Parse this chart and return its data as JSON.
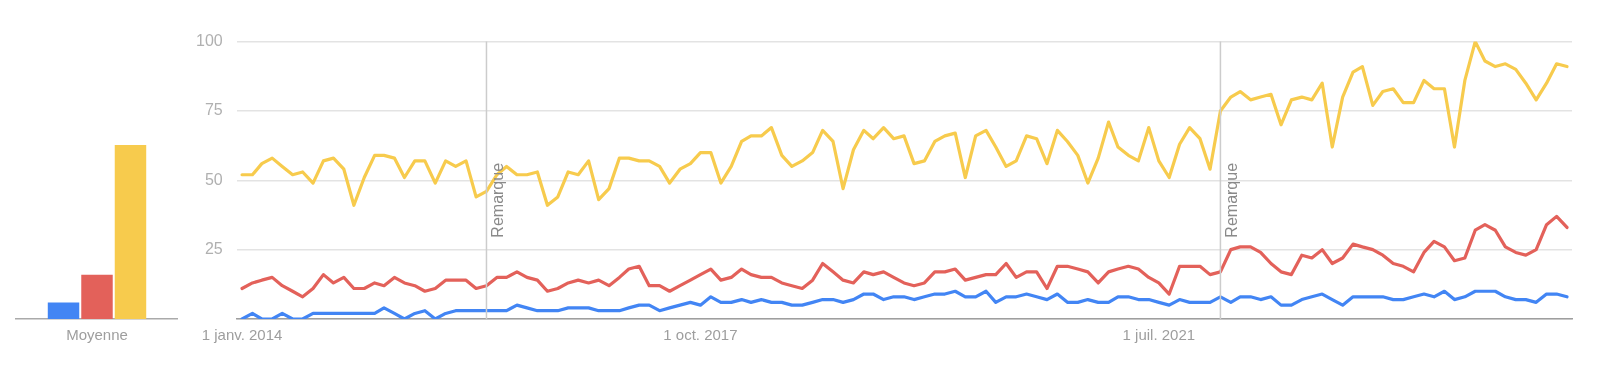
{
  "chart_data": [
    {
      "type": "bar",
      "categories": [
        "Moyenne"
      ],
      "ylim": [
        0,
        100
      ],
      "tick_labels": "x",
      "legend": false,
      "grid": false,
      "series": [
        {
          "color": "#4285f4",
          "values": [
            6
          ]
        },
        {
          "color": "#e3615a",
          "values": [
            16
          ]
        },
        {
          "color": "#f7cb4d",
          "values": [
            63
          ]
        }
      ]
    },
    {
      "type": "line",
      "marker": "none",
      "line_style": "solid",
      "grid": "y",
      "legend": false,
      "x": [
        "2014-01",
        "2014-02",
        "2014-03",
        "2014-04",
        "2014-05",
        "2014-06",
        "2014-07",
        "2014-08",
        "2014-09",
        "2014-10",
        "2014-11",
        "2014-12",
        "2015-01",
        "2015-02",
        "2015-03",
        "2015-04",
        "2015-05",
        "2015-06",
        "2015-07",
        "2015-08",
        "2015-09",
        "2015-10",
        "2015-11",
        "2015-12",
        "2016-01",
        "2016-02",
        "2016-03",
        "2016-04",
        "2016-05",
        "2016-06",
        "2016-07",
        "2016-08",
        "2016-09",
        "2016-10",
        "2016-11",
        "2016-12",
        "2017-01",
        "2017-02",
        "2017-03",
        "2017-04",
        "2017-05",
        "2017-06",
        "2017-07",
        "2017-08",
        "2017-09",
        "2017-10",
        "2017-11",
        "2017-12",
        "2018-01",
        "2018-02",
        "2018-03",
        "2018-04",
        "2018-05",
        "2018-06",
        "2018-07",
        "2018-08",
        "2018-09",
        "2018-10",
        "2018-11",
        "2018-12",
        "2019-01",
        "2019-02",
        "2019-03",
        "2019-04",
        "2019-05",
        "2019-06",
        "2019-07",
        "2019-08",
        "2019-09",
        "2019-10",
        "2019-11",
        "2019-12",
        "2020-01",
        "2020-02",
        "2020-03",
        "2020-04",
        "2020-05",
        "2020-06",
        "2020-07",
        "2020-08",
        "2020-09",
        "2020-10",
        "2020-11",
        "2020-12",
        "2021-01",
        "2021-02",
        "2021-03",
        "2021-04",
        "2021-05",
        "2021-06",
        "2021-07",
        "2021-08",
        "2021-09",
        "2021-10",
        "2021-11",
        "2021-12",
        "2022-01",
        "2022-02",
        "2022-03",
        "2022-04",
        "2022-05",
        "2022-06",
        "2022-07",
        "2022-08",
        "2022-09",
        "2022-10",
        "2022-11",
        "2022-12",
        "2023-01",
        "2023-02",
        "2023-03",
        "2023-04",
        "2023-05",
        "2023-06",
        "2023-07",
        "2023-08",
        "2023-09",
        "2023-10",
        "2023-11",
        "2023-12",
        "2024-01",
        "2024-02",
        "2024-03",
        "2024-04",
        "2024-05",
        "2024-06",
        "2024-07",
        "2024-08",
        "2024-09",
        "2024-10",
        "2024-11"
      ],
      "xlim": [
        "2013-12-16",
        "2024-11-16"
      ],
      "xticks": [
        {
          "value": "2014-01-01",
          "label": "1 janv. 2014"
        },
        {
          "value": "2017-10-01",
          "label": "1 oct. 2017"
        },
        {
          "value": "2021-07-01",
          "label": "1 juil. 2021"
        }
      ],
      "ylim": [
        0,
        100
      ],
      "yticks": [
        {
          "value": 0,
          "label": null
        },
        25,
        50,
        75,
        100
      ],
      "ref_lines": [
        {
          "axis": "x",
          "value": "2016-01",
          "label": "Remarque",
          "color": "#cccccc"
        },
        {
          "axis": "x",
          "value": "2022-01",
          "label": "Remarque",
          "color": "#cccccc"
        }
      ],
      "series": [
        {
          "color": "#4285f4",
          "values": [
            0,
            2,
            0,
            0,
            2,
            0,
            0,
            2,
            2,
            2,
            2,
            2,
            2,
            2,
            4,
            2,
            0,
            2,
            3,
            0,
            2,
            3,
            3,
            3,
            3,
            3,
            3,
            5,
            4,
            3,
            3,
            3,
            4,
            4,
            4,
            3,
            3,
            3,
            4,
            5,
            5,
            3,
            4,
            5,
            6,
            5,
            8,
            6,
            6,
            7,
            6,
            7,
            6,
            6,
            5,
            5,
            6,
            7,
            7,
            6,
            7,
            9,
            9,
            7,
            8,
            8,
            7,
            8,
            9,
            9,
            10,
            8,
            8,
            10,
            6,
            8,
            8,
            9,
            8,
            7,
            9,
            6,
            6,
            7,
            6,
            6,
            8,
            8,
            7,
            7,
            6,
            5,
            7,
            6,
            6,
            6,
            8,
            6,
            8,
            8,
            7,
            8,
            5,
            5,
            7,
            8,
            9,
            7,
            5,
            8,
            8,
            8,
            8,
            7,
            7,
            8,
            9,
            8,
            10,
            7,
            8,
            10,
            10,
            10,
            8,
            7,
            7,
            6,
            9,
            9,
            8
          ]
        },
        {
          "color": "#e3615a",
          "values": [
            11,
            13,
            14,
            15,
            12,
            10,
            8,
            11,
            16,
            13,
            15,
            11,
            11,
            13,
            12,
            15,
            13,
            12,
            10,
            11,
            14,
            14,
            14,
            11,
            12,
            15,
            15,
            17,
            15,
            14,
            10,
            11,
            13,
            14,
            13,
            14,
            12,
            15,
            18,
            19,
            12,
            12,
            10,
            12,
            14,
            16,
            18,
            14,
            15,
            18,
            16,
            15,
            15,
            13,
            12,
            11,
            14,
            20,
            17,
            14,
            13,
            17,
            16,
            17,
            15,
            13,
            12,
            13,
            17,
            17,
            18,
            14,
            15,
            16,
            16,
            20,
            15,
            17,
            17,
            11,
            19,
            19,
            18,
            17,
            13,
            17,
            18,
            19,
            18,
            15,
            13,
            9,
            19,
            19,
            19,
            16,
            17,
            25,
            26,
            26,
            24,
            20,
            17,
            16,
            23,
            22,
            25,
            20,
            22,
            27,
            26,
            25,
            23,
            20,
            19,
            17,
            24,
            28,
            26,
            21,
            22,
            32,
            34,
            32,
            26,
            24,
            23,
            25,
            34,
            37,
            33
          ]
        },
        {
          "color": "#f7cb4d",
          "values": [
            52,
            52,
            56,
            58,
            55,
            52,
            53,
            49,
            57,
            58,
            54,
            41,
            51,
            59,
            59,
            58,
            51,
            57,
            57,
            49,
            57,
            55,
            57,
            44,
            46,
            52,
            55,
            52,
            52,
            53,
            41,
            44,
            53,
            52,
            57,
            43,
            47,
            58,
            58,
            57,
            57,
            55,
            49,
            54,
            56,
            60,
            60,
            49,
            55,
            64,
            66,
            66,
            69,
            59,
            55,
            57,
            60,
            68,
            64,
            47,
            61,
            68,
            65,
            69,
            65,
            66,
            56,
            57,
            64,
            66,
            67,
            51,
            66,
            68,
            62,
            55,
            57,
            66,
            65,
            56,
            68,
            64,
            59,
            49,
            58,
            71,
            62,
            59,
            57,
            69,
            57,
            51,
            63,
            69,
            65,
            54,
            75,
            80,
            82,
            79,
            80,
            81,
            70,
            79,
            80,
            79,
            85,
            62,
            80,
            89,
            91,
            77,
            82,
            83,
            78,
            78,
            86,
            83,
            83,
            62,
            86,
            100,
            93,
            91,
            92,
            90,
            85,
            79,
            85,
            92,
            91
          ]
        }
      ]
    }
  ]
}
